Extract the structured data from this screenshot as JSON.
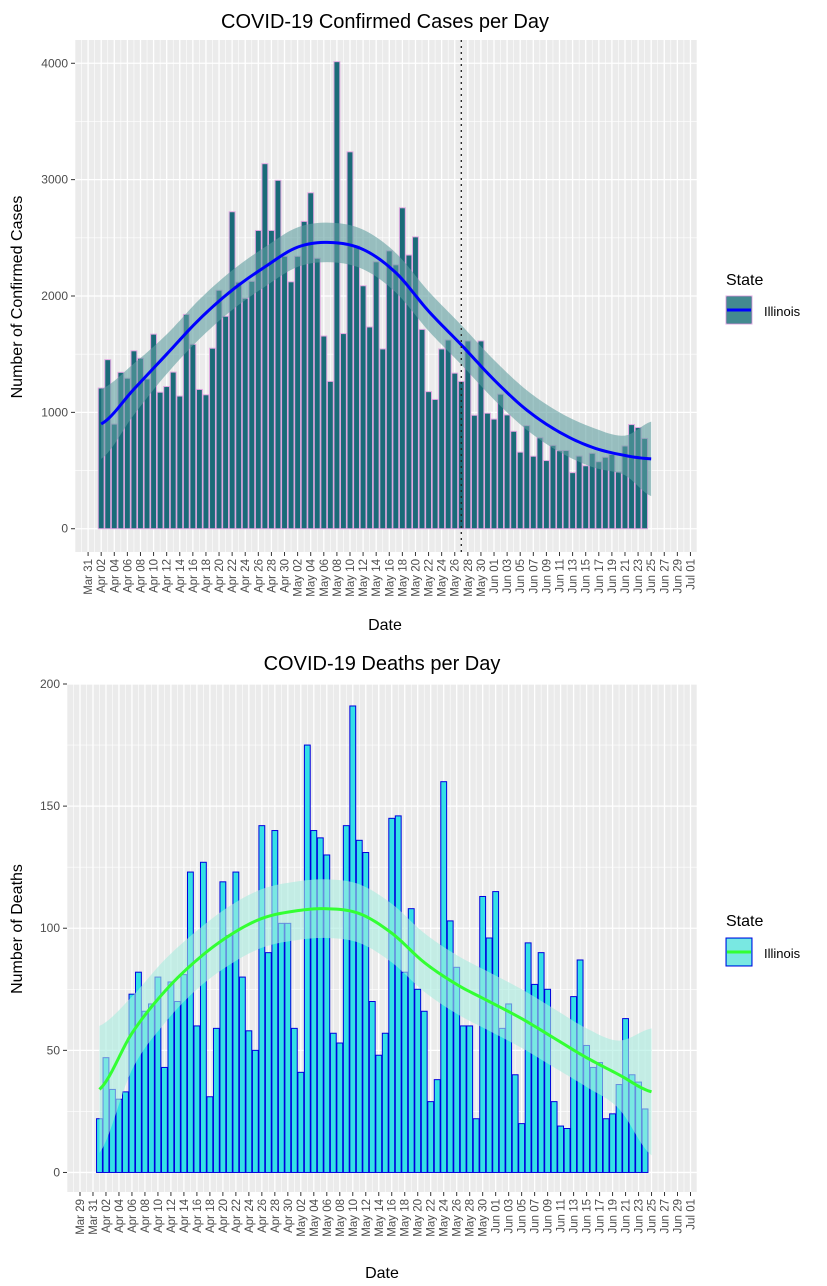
{
  "chart_data": [
    {
      "type": "bar",
      "title": "COVID-19 Confirmed Cases per Day",
      "xlabel": "Date",
      "ylabel": "Number of Confirmed Cases",
      "ylim": [
        -200,
        4200
      ],
      "yticks": [
        0,
        1000,
        2000,
        3000,
        4000
      ],
      "date_range": [
        "2020-03-29",
        "2020-07-02"
      ],
      "xtick_labels": [
        "Mar 31",
        "Apr 02",
        "Apr 04",
        "Apr 06",
        "Apr 08",
        "Apr 10",
        "Apr 12",
        "Apr 14",
        "Apr 16",
        "Apr 18",
        "Apr 20",
        "Apr 22",
        "Apr 24",
        "Apr 26",
        "Apr 28",
        "Apr 30",
        "May 02",
        "May 04",
        "May 06",
        "May 08",
        "May 10",
        "May 12",
        "May 14",
        "May 16",
        "May 18",
        "May 20",
        "May 22",
        "May 24",
        "May 26",
        "May 28",
        "May 30",
        "Jun 01",
        "Jun 03",
        "Jun 05",
        "Jun 07",
        "Jun 09",
        "Jun 11",
        "Jun 13",
        "Jun 15",
        "Jun 17",
        "Jun 19",
        "Jun 21",
        "Jun 23",
        "Jun 25",
        "Jun 27",
        "Jun 29",
        "Jul 01"
      ],
      "vline_date": "2020-05-27",
      "legend": {
        "title": "State",
        "entries": [
          "Illinois"
        ],
        "position": "right"
      },
      "colors": {
        "bar_fill": "#1a6b78",
        "bar_stroke": "#e0a8e0",
        "smooth": "#0000ff",
        "ribbon": "#5f9ea0"
      },
      "series": [
        {
          "name": "Illinois",
          "start_date": "2020-04-02",
          "values": [
            1209,
            1453,
            899,
            1344,
            1293,
            1529,
            1465,
            1287,
            1672,
            1173,
            1222,
            1346,
            1140,
            1842,
            1585,
            1197,
            1151,
            1551,
            2049,
            1826,
            2724,
            2119,
            1980,
            2126,
            2563,
            3137,
            2563,
            2994,
            2341,
            2122,
            2341,
            2641,
            2887,
            2324,
            1656,
            1266,
            4014,
            1677,
            3239,
            2432,
            2088,
            1734,
            2294,
            1545,
            2388,
            2268,
            2758,
            2352,
            2508,
            1713,
            1178,
            1111,
            1545,
            1622,
            1337,
            1266,
            1614,
            975,
            1614,
            993,
            942,
            1156,
            978,
            837,
            658,
            886,
            623,
            782,
            586,
            716,
            671,
            672,
            482,
            624,
            541,
            648,
            576,
            614,
            638,
            488,
            711,
            895,
            870,
            776
          ]
        }
      ],
      "smooth": {
        "x_days": [
          0,
          5,
          10,
          15,
          20,
          25,
          30,
          35,
          40,
          45,
          50,
          55,
          60,
          65,
          70,
          75,
          80,
          84
        ],
        "y": [
          900,
          1200,
          1500,
          1800,
          2050,
          2250,
          2420,
          2460,
          2400,
          2200,
          1870,
          1580,
          1280,
          1020,
          830,
          700,
          630,
          600
        ],
        "ci": [
          300,
          220,
          170,
          170,
          170,
          170,
          170,
          170,
          170,
          170,
          170,
          170,
          170,
          170,
          170,
          170,
          170,
          320
        ]
      }
    },
    {
      "type": "bar",
      "title": "COVID-19 Deaths per Day",
      "xlabel": "Date",
      "ylabel": "Number of Deaths",
      "ylim": [
        -8,
        200
      ],
      "yticks": [
        0,
        50,
        100,
        150,
        200
      ],
      "date_range": [
        "2020-03-27",
        "2020-07-02"
      ],
      "xtick_labels": [
        "Mar 29",
        "Mar 31",
        "Apr 02",
        "Apr 04",
        "Apr 06",
        "Apr 08",
        "Apr 10",
        "Apr 12",
        "Apr 14",
        "Apr 16",
        "Apr 18",
        "Apr 20",
        "Apr 22",
        "Apr 24",
        "Apr 26",
        "Apr 28",
        "Apr 30",
        "May 02",
        "May 04",
        "May 06",
        "May 08",
        "May 10",
        "May 12",
        "May 14",
        "May 16",
        "May 18",
        "May 20",
        "May 22",
        "May 24",
        "May 26",
        "May 28",
        "May 30",
        "Jun 01",
        "Jun 03",
        "Jun 05",
        "Jun 07",
        "Jun 09",
        "Jun 11",
        "Jun 13",
        "Jun 15",
        "Jun 17",
        "Jun 19",
        "Jun 21",
        "Jun 23",
        "Jun 25",
        "Jun 27",
        "Jun 29",
        "Jul 01"
      ],
      "legend": {
        "title": "State",
        "entries": [
          "Illinois"
        ],
        "position": "right"
      },
      "colors": {
        "bar_fill": "#33e0e6",
        "bar_stroke": "#0000dd",
        "smooth": "#33ff33",
        "ribbon": "#a8ece0"
      },
      "series": [
        {
          "name": "Illinois",
          "start_date": "2020-04-01",
          "values": [
            22,
            47,
            34,
            30,
            33,
            73,
            82,
            66,
            69,
            80,
            43,
            78,
            70,
            81,
            123,
            60,
            127,
            31,
            59,
            119,
            97,
            123,
            80,
            58,
            50,
            142,
            90,
            140,
            102,
            102,
            59,
            41,
            175,
            140,
            137,
            130,
            57,
            53,
            142,
            191,
            136,
            131,
            70,
            48,
            57,
            145,
            146,
            82,
            108,
            75,
            66,
            29,
            38,
            160,
            103,
            84,
            60,
            60,
            22,
            113,
            96,
            115,
            59,
            69,
            40,
            20,
            94,
            77,
            90,
            75,
            29,
            19,
            18,
            72,
            87,
            52,
            43,
            45,
            22,
            24,
            36,
            63,
            40,
            37,
            26
          ]
        }
      ],
      "smooth": {
        "x_days": [
          0,
          5,
          10,
          15,
          20,
          25,
          30,
          35,
          40,
          45,
          50,
          55,
          60,
          65,
          70,
          75,
          80,
          85
        ],
        "y": [
          34,
          57,
          74,
          87,
          97,
          104,
          107,
          108,
          106,
          98,
          86,
          77,
          70,
          63,
          55,
          47,
          40,
          33
        ],
        "ci": [
          26,
          15,
          13,
          12,
          12,
          12,
          12,
          12,
          12,
          12,
          12,
          12,
          12,
          12,
          12,
          12,
          14,
          26
        ]
      }
    }
  ]
}
